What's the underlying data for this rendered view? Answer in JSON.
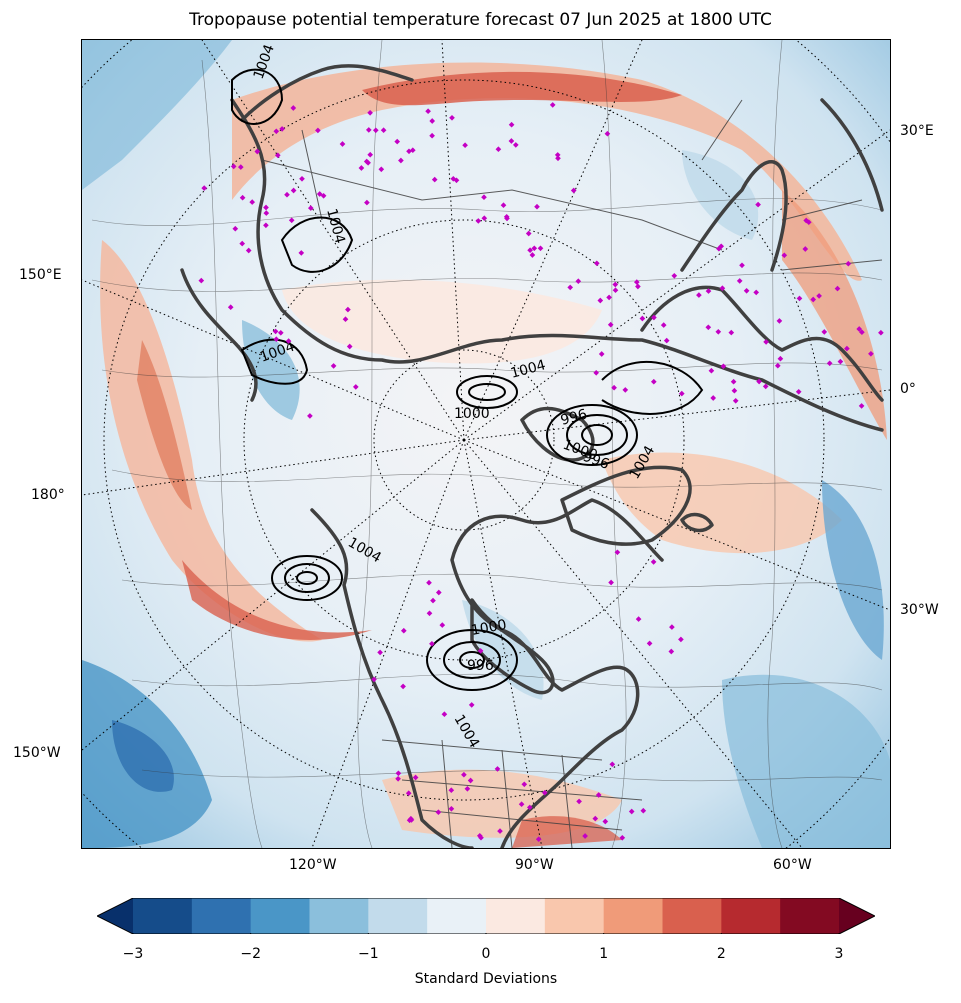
{
  "title": "Tropopause potential temperature forecast 07 Jun 2025 at 1800 UTC",
  "map": {
    "projection": "north-polar-stereographic",
    "field": "tropopause potential temperature anomaly",
    "overlay_contours": "mean sea level pressure (hPa)",
    "pressure_contour_labels": [
      "1004",
      "1000",
      "996",
      "1004",
      "1000",
      "996",
      "1004",
      "1004",
      "996",
      "1000",
      "1004",
      "1004",
      "1004"
    ],
    "lon_labels_right": [
      "30°E",
      "0°",
      "30°W"
    ],
    "lon_labels_left": [
      "150°E",
      "180°",
      "150°W"
    ],
    "lon_labels_bottom": [
      "120°W",
      "90°W",
      "60°W"
    ],
    "station_marker_color": "#c400c4",
    "coastline_color": "#404040",
    "contour_color": "#000000"
  },
  "colorbar": {
    "label": "Standard Deviations",
    "ticks": [
      "−3",
      "−2",
      "−1",
      "0",
      "1",
      "2",
      "3"
    ],
    "range": [
      -3,
      3
    ],
    "step": 0.5,
    "extend": "both",
    "colors": [
      "#08306b",
      "#154c8a",
      "#2f71b0",
      "#4a96c7",
      "#8bbfdc",
      "#c2dbeb",
      "#e9f1f7",
      "#fbe9e1",
      "#f9c7ad",
      "#f09b79",
      "#d9604e",
      "#b62a2f",
      "#830a22",
      "#67001f"
    ]
  }
}
